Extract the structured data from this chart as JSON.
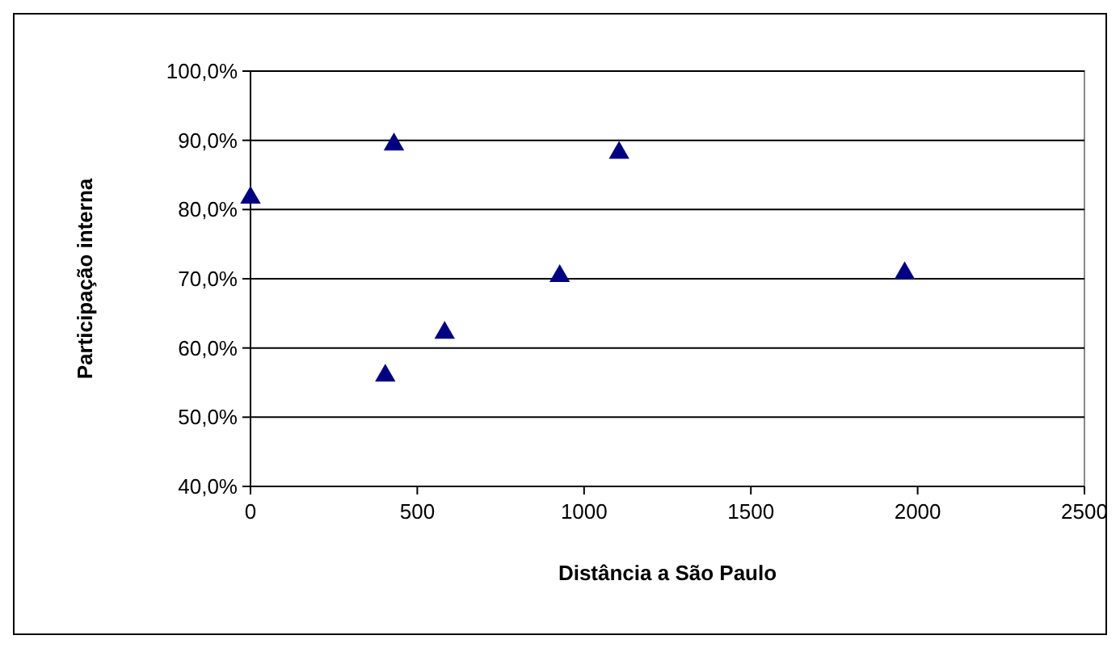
{
  "chart_data": {
    "type": "scatter",
    "xlabel": "Distância a São Paulo",
    "ylabel": "Participação interna",
    "x": [
      0,
      430,
      404,
      582,
      927,
      1105,
      1961
    ],
    "values": [
      81.7,
      89.4,
      56.0,
      62.2,
      70.4,
      88.2,
      70.8
    ],
    "color": "#000080",
    "marker": "triangle",
    "grid": "y",
    "xlim": [
      0,
      2500
    ],
    "xticks": [
      0,
      500,
      1000,
      1500,
      2000,
      2500
    ],
    "ylim": [
      40,
      100
    ],
    "yticks": [
      {
        "value": 40,
        "label": "40,0%"
      },
      {
        "value": 50,
        "label": "50,0%"
      },
      {
        "value": 60,
        "label": "60,0%"
      },
      {
        "value": 70,
        "label": "70,0%"
      },
      {
        "value": 80,
        "label": "80,0%"
      },
      {
        "value": 90,
        "label": "90,0%"
      },
      {
        "value": 100,
        "label": "100,0%"
      }
    ]
  }
}
